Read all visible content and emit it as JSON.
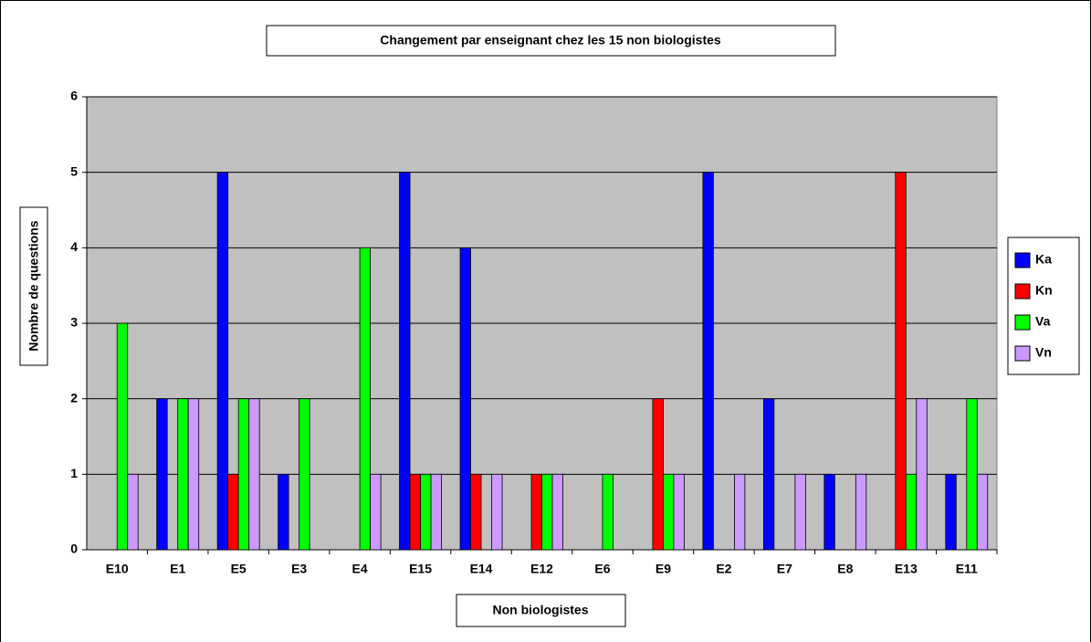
{
  "chart_data": {
    "type": "bar",
    "title": "Changement  par enseignant chez les 15 non biologistes",
    "x_label": "Non biologistes",
    "y_label": "Nombre de questions",
    "categories": [
      "E10",
      "E1",
      "E5",
      "E3",
      "E4",
      "E15",
      "E14",
      "E12",
      "E6",
      "E9",
      "E2",
      "E7",
      "E8",
      "E13",
      "E11"
    ],
    "series": [
      {
        "name": "Ka",
        "color": "#0000ff",
        "values": [
          0,
          2,
          5,
          1,
          0,
          5,
          4,
          0,
          0,
          0,
          5,
          2,
          1,
          0,
          1
        ]
      },
      {
        "name": "Kn",
        "color": "#ff0000",
        "values": [
          0,
          0,
          1,
          0,
          0,
          1,
          1,
          1,
          0,
          2,
          0,
          0,
          0,
          5,
          0
        ]
      },
      {
        "name": "Va",
        "color": "#00ff00",
        "values": [
          3,
          2,
          2,
          2,
          4,
          1,
          0,
          1,
          1,
          1,
          0,
          0,
          0,
          1,
          2
        ]
      },
      {
        "name": "Vn",
        "color": "#cc99ff",
        "values": [
          1,
          2,
          2,
          0,
          1,
          1,
          1,
          1,
          0,
          1,
          1,
          1,
          1,
          2,
          1
        ]
      }
    ],
    "ylim": [
      0,
      6
    ],
    "yticks": [
      0,
      1,
      2,
      3,
      4,
      5,
      6
    ],
    "grid": true,
    "legend": "right"
  }
}
